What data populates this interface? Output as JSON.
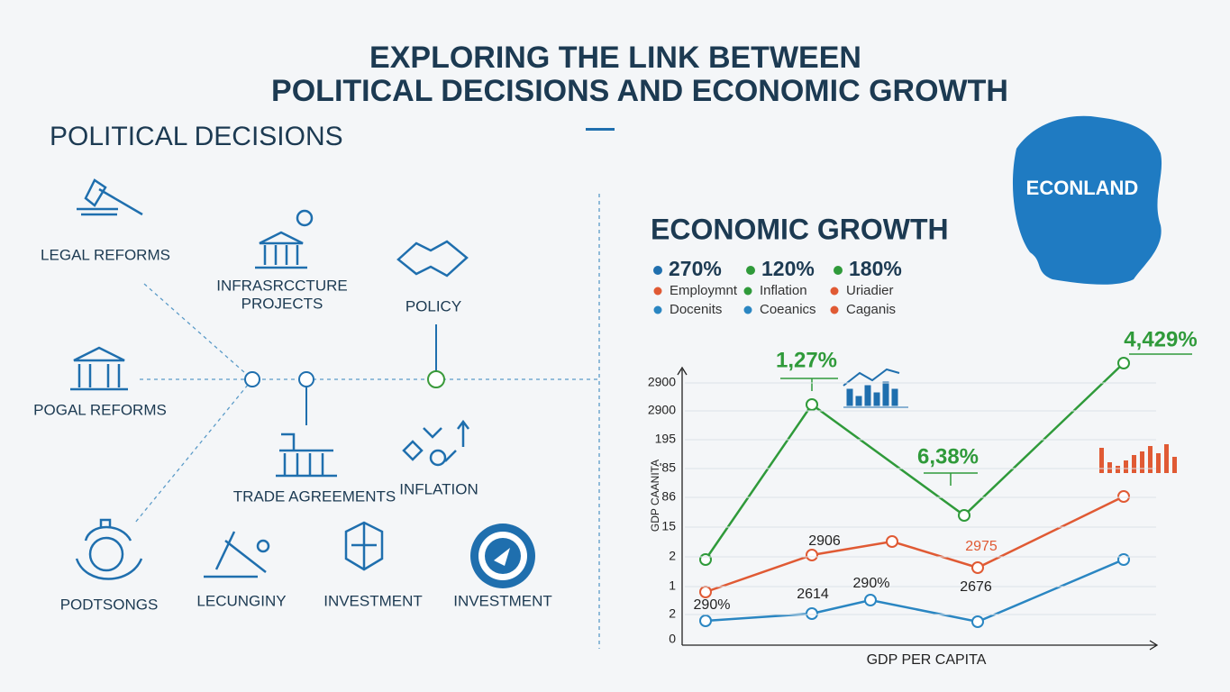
{
  "title": [
    "EXPLORING THE LINK BETWEEN",
    "POLITICAL DECISIONS AND ECONOMIC GROWTH"
  ],
  "political": {
    "heading": "POLITICAL DECISIONS",
    "items": [
      "LEGAL REFORMS",
      "INFRASRCCTURE",
      "PROJECTS",
      "POLICY",
      "POGAL REFORMS",
      "TRADE AGREEMENTS",
      "INFLATION",
      "PODTSONGS",
      "LECUNGINY",
      "INVESTMENT",
      "INVESTMENT"
    ]
  },
  "economic": {
    "heading": "ECONOMIC GROWTH",
    "map_label": "ECONLAND",
    "stats": [
      "270%",
      "120%",
      "180%"
    ],
    "legend": [
      "Employmnt",
      "Inflation",
      "Uriadier",
      "Docenits",
      "Coeanics",
      "Caganis"
    ],
    "chart": {
      "y_labels": [
        "2900",
        "2900",
        "195",
        "'85",
        "86",
        "15",
        "2",
        "1",
        "2",
        "0"
      ],
      "y_axis_label": "GDP CAANITA",
      "x_axis_label": "GDP PER CAPITA",
      "annotations": [
        "1,27%",
        "6,38%",
        "4,429%",
        "2906",
        "2975",
        "290%",
        "2614",
        "290%",
        "2676"
      ]
    }
  }
}
